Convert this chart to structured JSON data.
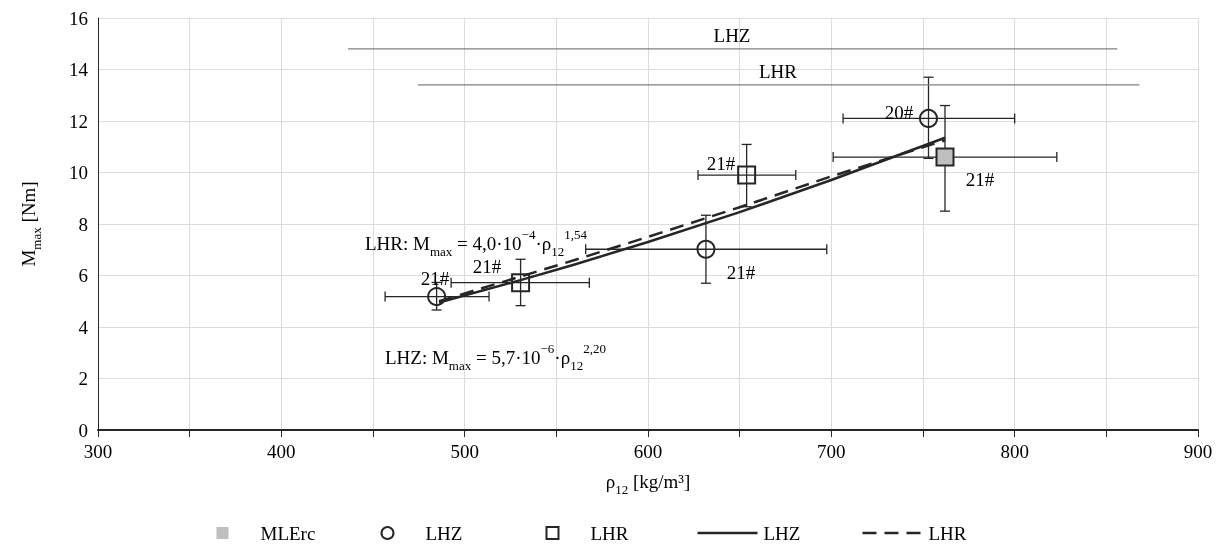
{
  "chart_data": {
    "type": "scatter",
    "xlabel": "ρ$_{12}$ [kg/m³]",
    "ylabel": "M$_{max}$ [Nm]",
    "xlim": [
      300,
      900
    ],
    "xticks": [
      300,
      {
        "value": 350,
        "label": null
      },
      400,
      {
        "value": 450,
        "label": null
      },
      500,
      {
        "value": 550,
        "label": null
      },
      600,
      {
        "value": 650,
        "label": null
      },
      700,
      {
        "value": 750,
        "label": null
      },
      800,
      {
        "value": 850,
        "label": null
      },
      900
    ],
    "ylim": [
      0,
      16
    ],
    "yticks": [
      0,
      2,
      4,
      6,
      8,
      10,
      12,
      14,
      16
    ],
    "grid": true,
    "legend": "bottom",
    "series": [
      {
        "name": "MLErc",
        "marker": "square",
        "color": "#bfbfbf",
        "x": [
          762
        ],
        "values": [
          10.6
        ],
        "xerrors": [
          [
            701,
            823
          ]
        ],
        "errors": [
          [
            8.5,
            12.6
          ]
        ]
      },
      {
        "name": "LHZ",
        "marker": "circle",
        "color": "#262626",
        "x": [
          484.7,
          631.6,
          753
        ],
        "values": [
          5.18,
          7.02,
          12.1
        ],
        "xerrors": [
          [
            456.6,
            513.3
          ],
          [
            566,
            697.5
          ],
          [
            706.4,
            800
          ]
        ],
        "errors": [
          [
            4.66,
            5.73
          ],
          [
            5.7,
            8.34
          ],
          [
            10.55,
            13.7
          ]
        ]
      },
      {
        "name": "LHR",
        "marker": "square",
        "color": "#262626",
        "x": [
          530.5,
          653.8
        ],
        "values": [
          5.72,
          9.9
        ],
        "xerrors": [
          [
            492.6,
            568
          ],
          [
            627.3,
            680.6
          ]
        ],
        "errors": [
          [
            4.83,
            6.63
          ],
          [
            8.67,
            11.09
          ]
        ]
      },
      {
        "name": "LHZ",
        "type": "line",
        "marker": "none",
        "line_style": "solid",
        "color": "#262626",
        "x": [
          486,
          530,
          560,
          600,
          650,
          700,
          762
        ],
        "values": [
          4.95,
          5.81,
          6.43,
          7.3,
          8.46,
          9.71,
          11.35
        ]
      },
      {
        "name": "LHR",
        "type": "line",
        "marker": "none",
        "line_style": "dashed",
        "color": "#262626",
        "x": [
          486,
          530,
          560,
          600,
          650,
          700,
          762
        ],
        "values": [
          5.0,
          5.95,
          6.6,
          7.5,
          8.65,
          9.85,
          11.25
        ]
      },
      {
        "type": "line",
        "marker": "none",
        "line_style": "solid",
        "color": "#808080",
        "x": [
          436.4,
          856
        ],
        "values": [
          14.8,
          14.8
        ]
      },
      {
        "type": "line",
        "marker": "none",
        "line_style": "solid",
        "color": "#808080",
        "x": [
          474.5,
          868
        ],
        "values": [
          13.4,
          13.4
        ]
      }
    ],
    "annotations": [
      "LHZ",
      "LHR",
      "21#",
      "21#",
      "21#",
      "21#",
      "20#",
      "21#",
      "LHR: M$_{max}$ = 4,0·10$^{−4}$·ρ$_{12}$$^{1,54}$",
      "LHZ: M$_{max}$ = 5,7·10$^{−6}$·ρ$_{12}$$^{2,20}$"
    ]
  }
}
